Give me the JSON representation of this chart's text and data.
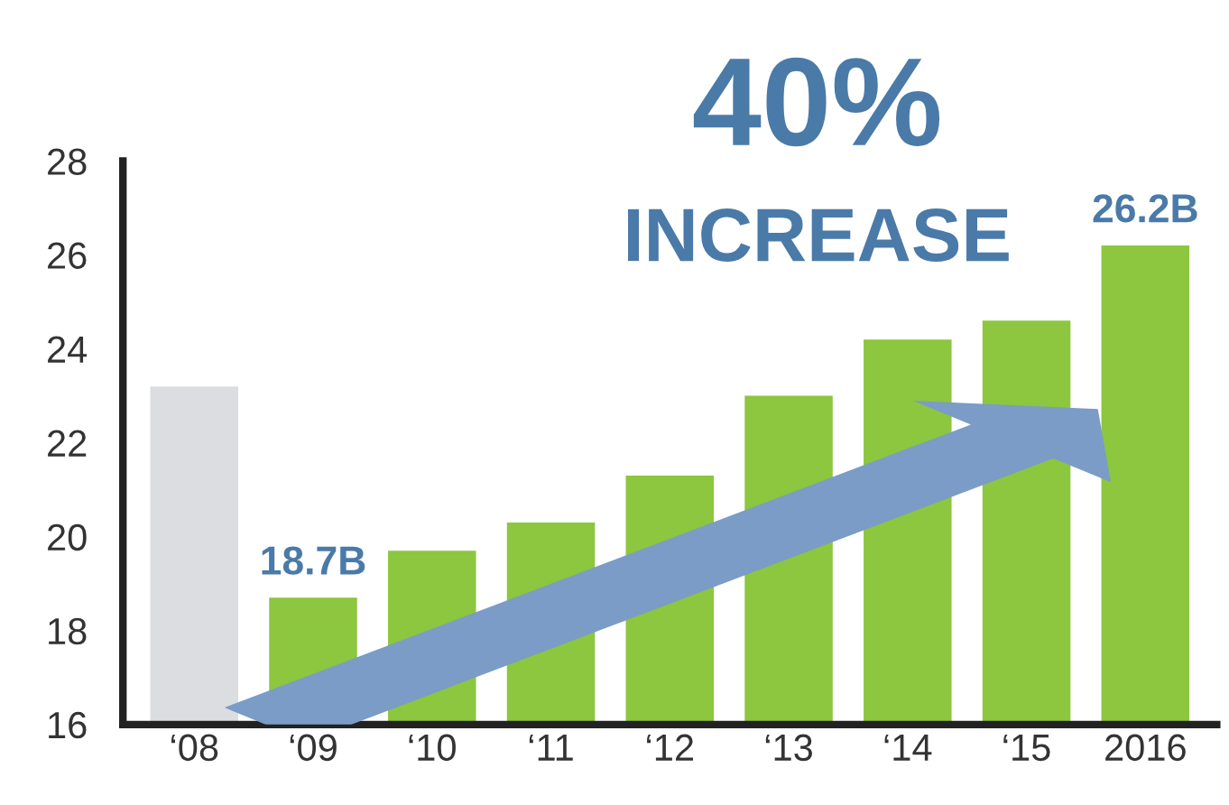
{
  "chart_data": {
    "type": "bar",
    "categories": [
      "‘08",
      "‘09",
      "‘10",
      "‘11",
      "‘12",
      "‘13",
      "‘14",
      "‘15",
      "2016"
    ],
    "values": [
      23.2,
      18.7,
      19.7,
      20.3,
      21.3,
      23.0,
      24.2,
      24.6,
      26.2
    ],
    "colors": [
      "#dcdde0",
      "#8dc63f",
      "#8dc63f",
      "#8dc63f",
      "#8dc63f",
      "#8dc63f",
      "#8dc63f",
      "#8dc63f",
      "#8dc63f"
    ],
    "value_labels": [
      null,
      "18.7B",
      null,
      null,
      null,
      null,
      null,
      null,
      "26.2B"
    ],
    "annotations": [
      "40%",
      "INCREASE"
    ],
    "ylim": [
      16,
      28
    ],
    "yticks": [
      16,
      18,
      20,
      22,
      24,
      26,
      28
    ],
    "grid": false
  }
}
